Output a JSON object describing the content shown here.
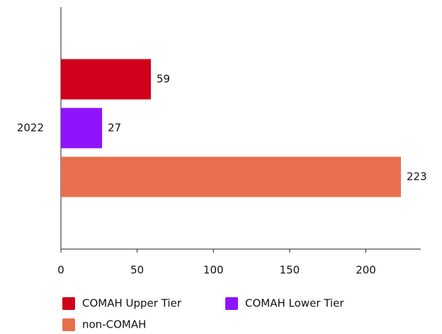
{
  "chart_data": {
    "type": "bar",
    "orientation": "horizontal",
    "categories": [
      "2022"
    ],
    "series": [
      {
        "name": "COMAH Upper Tier",
        "color": "#d0021b",
        "values": [
          59
        ]
      },
      {
        "name": "COMAH Lower Tier",
        "color": "#9013fe",
        "values": [
          27
        ]
      },
      {
        "name": "non-COMAH",
        "color": "#e8704f",
        "values": [
          223
        ]
      }
    ],
    "xlim": [
      0,
      236
    ],
    "xticks": [
      0,
      50,
      100,
      150,
      200
    ],
    "legend": "bottom",
    "grid": false
  }
}
